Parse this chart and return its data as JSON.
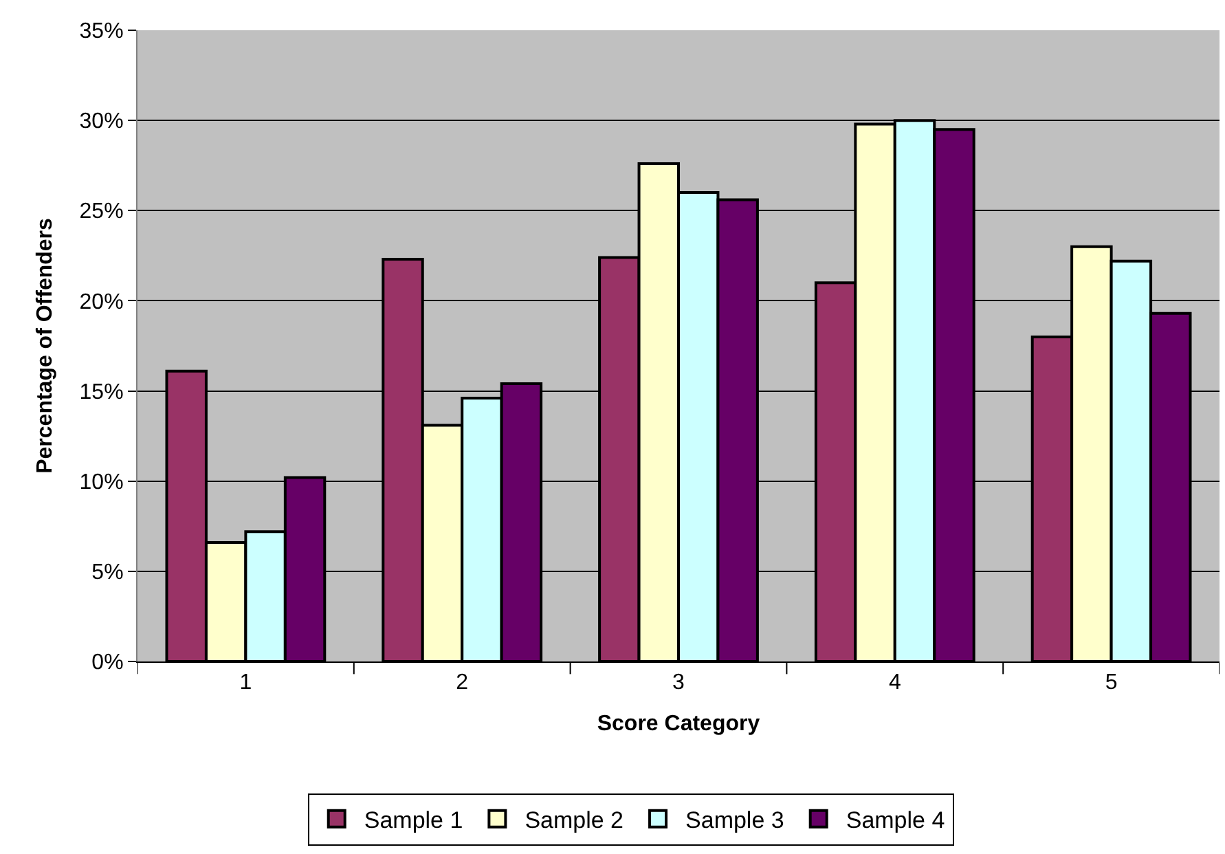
{
  "chart_data": {
    "type": "bar",
    "xlabel": "Score Category",
    "ylabel": "Percentage of Offenders",
    "categories": [
      "1",
      "2",
      "3",
      "4",
      "5"
    ],
    "series": [
      {
        "name": "Sample 1",
        "color": "#993366",
        "values": [
          16.1,
          22.3,
          22.4,
          21.0,
          18.0
        ]
      },
      {
        "name": "Sample 2",
        "color": "#ffffcc",
        "values": [
          6.6,
          13.1,
          27.6,
          29.8,
          23.0
        ]
      },
      {
        "name": "Sample 3",
        "color": "#ccffff",
        "values": [
          7.2,
          14.6,
          26.0,
          30.0,
          22.2
        ]
      },
      {
        "name": "Sample 4",
        "color": "#660066",
        "values": [
          10.2,
          15.4,
          25.6,
          29.5,
          19.3
        ]
      }
    ],
    "ylim": [
      0,
      35
    ],
    "yticks": [
      {
        "value": 0,
        "label": "0%"
      },
      {
        "value": 5,
        "label": "5%"
      },
      {
        "value": 10,
        "label": "10%"
      },
      {
        "value": 15,
        "label": "15%"
      },
      {
        "value": 20,
        "label": "20%"
      },
      {
        "value": 25,
        "label": "25%"
      },
      {
        "value": 30,
        "label": "30%"
      },
      {
        "value": 35,
        "label": "35%"
      }
    ],
    "grid": "y",
    "legend": "bottom"
  }
}
